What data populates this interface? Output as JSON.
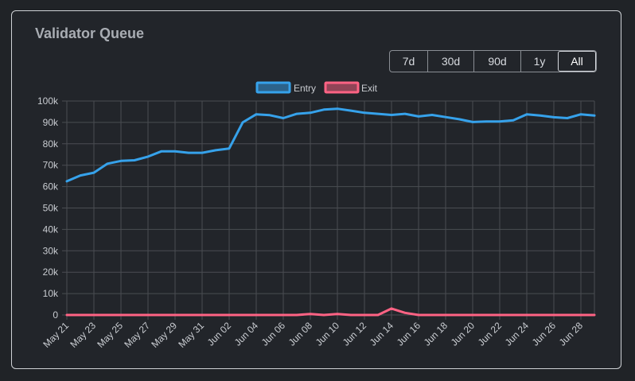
{
  "card": {
    "title": "Validator Queue"
  },
  "range_buttons": [
    {
      "label": "7d",
      "active": false
    },
    {
      "label": "30d",
      "active": false
    },
    {
      "label": "90d",
      "active": false
    },
    {
      "label": "1y",
      "active": false
    },
    {
      "label": "All",
      "active": true
    }
  ],
  "colors": {
    "entry": "#36a2eb",
    "exit": "#ff6384",
    "grid": "#4a4d52",
    "tick": "#c9ccd1"
  },
  "chart_data": {
    "type": "line",
    "title": "",
    "xlabel": "",
    "ylabel": "",
    "ylim": [
      0,
      100000
    ],
    "y_ticks": [
      "0",
      "10k",
      "20k",
      "30k",
      "40k",
      "50k",
      "60k",
      "70k",
      "80k",
      "90k",
      "100k"
    ],
    "x_tick_labels": [
      "May 21",
      "May 23",
      "May 25",
      "May 27",
      "May 29",
      "May 31",
      "Jun 02",
      "Jun 04",
      "Jun 06",
      "Jun 08",
      "Jun 10",
      "Jun 12",
      "Jun 14",
      "Jun 16",
      "Jun 18",
      "Jun 20",
      "Jun 22",
      "Jun 24",
      "Jun 26",
      "Jun 28"
    ],
    "legend_position": "top-center",
    "grid": true,
    "series": [
      {
        "name": "Entry",
        "values": [
          62500,
          65200,
          66500,
          70700,
          72000,
          72300,
          74000,
          76500,
          76500,
          75800,
          75800,
          77000,
          77800,
          90000,
          93800,
          93400,
          92000,
          94000,
          94500,
          96000,
          96400,
          95500,
          94500,
          94000,
          93500,
          94000,
          92800,
          93500,
          92500,
          91500,
          90200,
          90400,
          90400,
          91000,
          93800,
          93200,
          92400,
          92000,
          93800,
          93200
        ]
      },
      {
        "name": "Exit",
        "values": [
          0,
          0,
          0,
          0,
          0,
          0,
          0,
          0,
          0,
          0,
          0,
          0,
          0,
          0,
          0,
          0,
          0,
          0,
          500,
          0,
          500,
          0,
          0,
          0,
          3000,
          1000,
          0,
          0,
          0,
          0,
          0,
          0,
          0,
          0,
          0,
          0,
          0,
          0,
          0,
          0
        ]
      }
    ]
  }
}
